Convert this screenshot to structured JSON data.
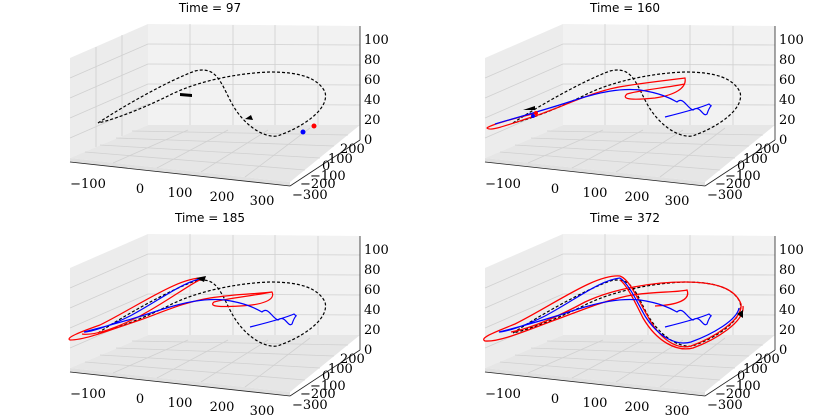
{
  "chart_data": [
    {
      "type": "line3d",
      "title": "Time = 97",
      "x_ticks": [
        "−100",
        "0",
        "100",
        "200",
        "300"
      ],
      "y_ticks": [
        "200",
        "100",
        "0",
        "−100",
        "−200",
        "−300"
      ],
      "z_ticks": [
        "0",
        "20",
        "40",
        "60",
        "80",
        "100"
      ],
      "series": [
        {
          "name": "reference",
          "style": "dashed",
          "color": "#000000"
        },
        {
          "name": "red trajectory",
          "color": "#ff0000",
          "marker_only": true
        },
        {
          "name": "blue trajectory",
          "color": "#0000ff",
          "marker_only": true
        }
      ]
    },
    {
      "type": "line3d",
      "title": "Time = 160",
      "x_ticks": [
        "−100",
        "0",
        "100",
        "200",
        "300"
      ],
      "y_ticks": [
        "200",
        "100",
        "0",
        "−100",
        "−200",
        "−300"
      ],
      "z_ticks": [
        "0",
        "20",
        "40",
        "60",
        "80",
        "100"
      ],
      "series": [
        {
          "name": "reference",
          "style": "dashed",
          "color": "#000000"
        },
        {
          "name": "red trajectory",
          "color": "#ff0000"
        },
        {
          "name": "blue trajectory",
          "color": "#0000ff"
        }
      ]
    },
    {
      "type": "line3d",
      "title": "Time = 185",
      "x_ticks": [
        "−100",
        "0",
        "100",
        "200",
        "300"
      ],
      "y_ticks": [
        "200",
        "100",
        "0",
        "−100",
        "−200",
        "−300"
      ],
      "z_ticks": [
        "0",
        "20",
        "40",
        "60",
        "80",
        "100"
      ],
      "series": [
        {
          "name": "reference",
          "style": "dashed",
          "color": "#000000"
        },
        {
          "name": "red trajectory",
          "color": "#ff0000"
        },
        {
          "name": "blue trajectory",
          "color": "#0000ff"
        }
      ]
    },
    {
      "type": "line3d",
      "title": "Time = 372",
      "x_ticks": [
        "−100",
        "0",
        "100",
        "200",
        "300"
      ],
      "y_ticks": [
        "200",
        "100",
        "0",
        "−100",
        "−200",
        "−300"
      ],
      "z_ticks": [
        "0",
        "20",
        "40",
        "60",
        "80",
        "100"
      ],
      "series": [
        {
          "name": "reference",
          "style": "dashed",
          "color": "#000000"
        },
        {
          "name": "red trajectory",
          "color": "#ff0000"
        },
        {
          "name": "blue trajectory",
          "color": "#0000ff"
        }
      ]
    }
  ],
  "colors": {
    "pane": "#f2f2f2",
    "pane_dark": "#e6e6e6",
    "grid": "#d0d0d0",
    "axis": "#222222",
    "reference": "#000000",
    "red": "#ff0000",
    "blue": "#0000ff"
  }
}
